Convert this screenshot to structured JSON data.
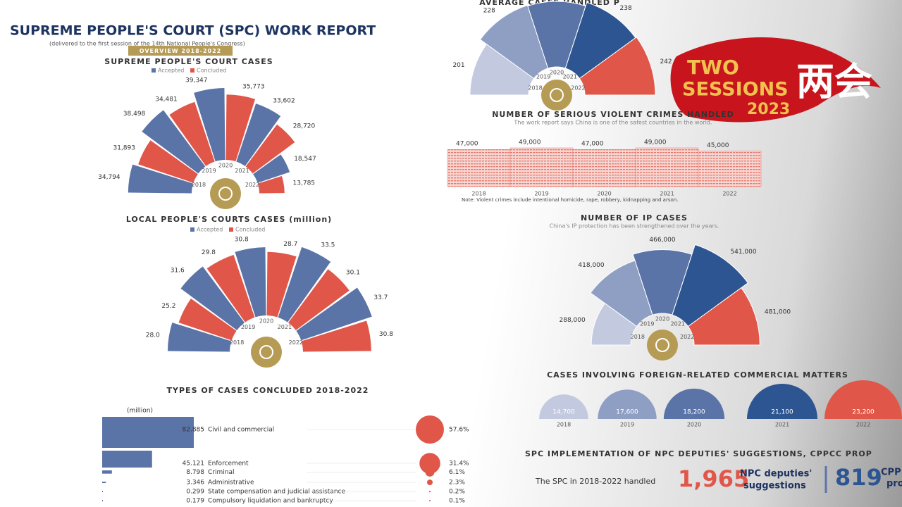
{
  "header": {
    "title": "SUPREME PEOPLE'S COURT (SPC) WORK REPORT",
    "subtitle": "(delivered to the first session of the 14th National People's Congress)",
    "badge": "OVERVIEW 2018-2022"
  },
  "logo": {
    "line1": "TWO",
    "line2": "SESSIONS",
    "year": "2023",
    "chinese": "两会"
  },
  "chart_data": [
    {
      "type": "radial-bar",
      "title": "SUPREME PEOPLE'S COURT CASES",
      "categories": [
        "2018",
        "2019",
        "2020",
        "2021",
        "2022"
      ],
      "series": [
        {
          "name": "Accepted",
          "color": "#5b74a8",
          "values": [
            34794,
            38498,
            39347,
            33602,
            18547
          ],
          "value_labels": [
            "34,794",
            "38,498",
            "39,347",
            "33,602",
            "18,547"
          ]
        },
        {
          "name": "Concluded",
          "color": "#e0574a",
          "values": [
            31893,
            34481,
            35773,
            28720,
            13785
          ],
          "value_labels": [
            "31,893",
            "34,481",
            "35,773",
            "28,720",
            "13,785"
          ]
        }
      ]
    },
    {
      "type": "radial-bar",
      "title": "LOCAL PEOPLE'S COURTS CASES (million)",
      "categories": [
        "2018",
        "2019",
        "2020",
        "2021",
        "2022"
      ],
      "series": [
        {
          "name": "Accepted",
          "color": "#5b74a8",
          "values": [
            28.0,
            31.6,
            30.8,
            33.5,
            33.7
          ],
          "value_labels": [
            "28.0",
            "31.6",
            "30.8",
            "33.5",
            "33.7"
          ]
        },
        {
          "name": "Concluded",
          "color": "#e0574a",
          "values": [
            25.2,
            29.8,
            28.7,
            30.1,
            30.8
          ],
          "value_labels": [
            "25.2",
            "29.8",
            "28.7",
            "30.1",
            "30.8"
          ]
        }
      ]
    },
    {
      "type": "polar-area",
      "title": "AVERAGE CASES HANDLED P",
      "categories": [
        "2018",
        "2019",
        "2020",
        "2021",
        "2022"
      ],
      "values": [
        201,
        228,
        225,
        238,
        242
      ],
      "colors": [
        "#c3cadf",
        "#8f9fc4",
        "#5b74a8",
        "#2d5591",
        "#e0574a"
      ]
    },
    {
      "type": "bar",
      "title": "NUMBER OF SERIOUS VIOLENT CRIMES HANDLED",
      "subtitle": "The work report says China is one of the safest countries in the world.",
      "categories": [
        "2018",
        "2019",
        "2020",
        "2021",
        "2022"
      ],
      "values": [
        47000,
        49000,
        47000,
        49000,
        45000
      ],
      "value_labels": [
        "47,000",
        "49,000",
        "47,000",
        "49,000",
        "45,000"
      ],
      "color": "#e8786c",
      "note": "Note: Violent crimes include intentional homicide, rape, robbery, kidnapping and arson."
    },
    {
      "type": "polar-area",
      "title": "NUMBER OF IP CASES",
      "subtitle": "China's IP protection has been strengthened over the years.",
      "categories": [
        "2018",
        "2019",
        "2020",
        "2021",
        "2022"
      ],
      "values": [
        288000,
        418000,
        466000,
        541000,
        481000
      ],
      "value_labels": [
        "288,000",
        "418,000",
        "466,000",
        "541,000",
        "481,000"
      ],
      "colors": [
        "#c3cadf",
        "#8f9fc4",
        "#5b74a8",
        "#2d5591",
        "#e0574a"
      ]
    },
    {
      "type": "semicircle",
      "title": "CASES INVOLVING FOREIGN-RELATED COMMERCIAL MATTERS",
      "categories": [
        "2018",
        "2019",
        "2020",
        "2021",
        "2022"
      ],
      "values": [
        14700,
        17600,
        18200,
        21100,
        23200
      ],
      "value_labels": [
        "14,700",
        "17,600",
        "18,200",
        "21,100",
        "23,200"
      ],
      "colors": [
        "#c3cadf",
        "#8f9fc4",
        "#5b74a8",
        "#2d5591",
        "#e0574a"
      ]
    },
    {
      "type": "hbar-share",
      "title": "TYPES OF CASES CONCLUDED 2018-2022",
      "unit": "(million)",
      "categories": [
        "Civil and commercial",
        "Enforcement",
        "Criminal",
        "Administrative",
        "State compensation and judicial assistance",
        "Compulsory liquidation and bankruptcy"
      ],
      "values": [
        82.885,
        45.121,
        8.798,
        3.346,
        0.299,
        0.179
      ],
      "color": "#5b74a8",
      "share_values": [
        57.6,
        31.4,
        6.1,
        2.3,
        0.2,
        0.1
      ],
      "share_labels": [
        "57.6%",
        "31.4%",
        "6.1%",
        "2.3%",
        "0.2%",
        "0.1%"
      ],
      "share_color": "#e0574a"
    }
  ],
  "suggestions": {
    "heading": "SPC IMPLEMENTATION OF NPC DEPUTIES' SUGGESTIONS, CPPCC PROP",
    "lead": "The SPC in 2018-2022 handled",
    "npc_count": "1,965",
    "npc_label": [
      "NPC deputies'",
      "suggestions"
    ],
    "cppcc_count": "819",
    "cppcc_label": [
      "CPP",
      "pro"
    ]
  }
}
